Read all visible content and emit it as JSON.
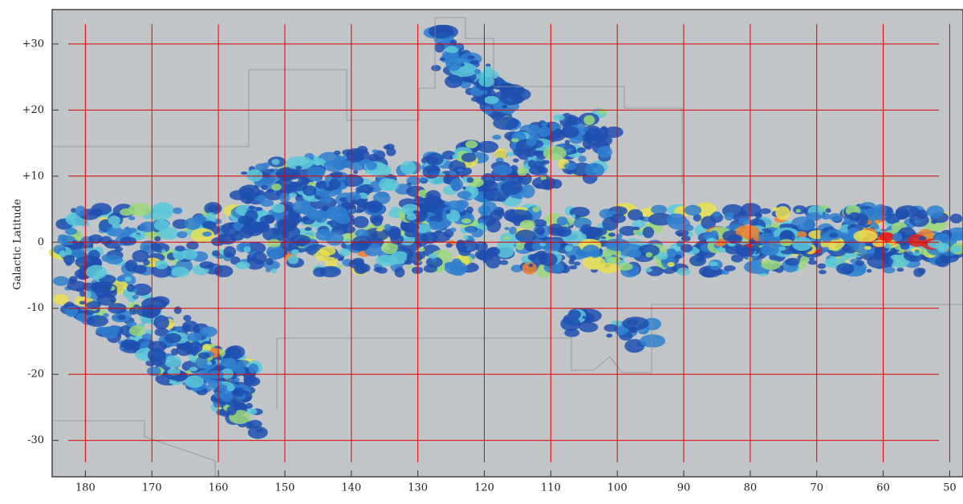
{
  "chart_data": {
    "type": "map",
    "ylabel": "Galactic Latitude",
    "xlim": [
      185,
      48
    ],
    "ylim": [
      -35.5,
      35.2
    ],
    "xticks": [
      180,
      170,
      160,
      150,
      140,
      130,
      120,
      110,
      100,
      90,
      80,
      70,
      60,
      50
    ],
    "yticks": [
      {
        "value": 30,
        "label": "+30"
      },
      {
        "value": 20,
        "label": "+20"
      },
      {
        "value": 10,
        "label": "+10"
      },
      0,
      -10,
      -20,
      -30
    ],
    "grid": true,
    "grid_color": "#e00000",
    "background": "#c1c5c7"
  }
}
